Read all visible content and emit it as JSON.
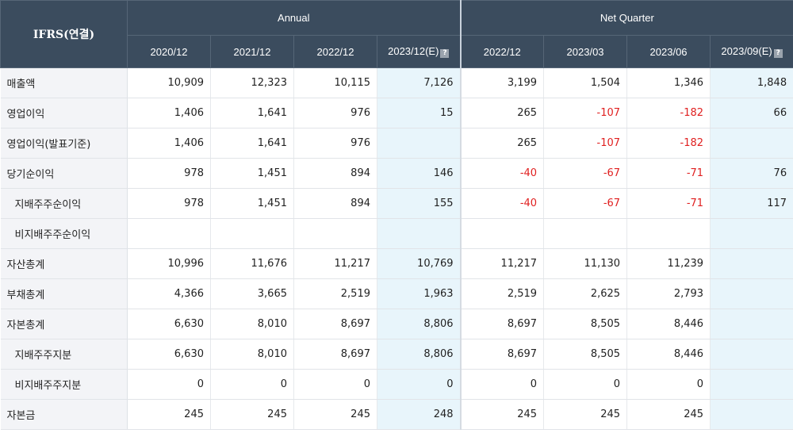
{
  "header": {
    "corner_label": "IFRS(연결)",
    "groups": [
      {
        "label": "Annual",
        "periods": [
          "2020/12",
          "2021/12",
          "2022/12",
          "2023/12(E)"
        ]
      },
      {
        "label": "Net Quarter",
        "periods": [
          "2022/12",
          "2023/03",
          "2023/06",
          "2023/09(E)"
        ]
      }
    ],
    "help_icon_glyph": "?"
  },
  "colors": {
    "header_bg": "#3b4c5e",
    "estimate_bg": "#e8f5fb",
    "negative": "#e02020",
    "label_bg": "#f3f4f7"
  },
  "rows": [
    {
      "label": "매출액",
      "indent": false,
      "values": [
        "10,909",
        "12,323",
        "10,115",
        "7,126",
        "3,199",
        "1,504",
        "1,346",
        "1,848"
      ]
    },
    {
      "label": "영업이익",
      "indent": false,
      "values": [
        "1,406",
        "1,641",
        "976",
        "15",
        "265",
        "-107",
        "-182",
        "66"
      ]
    },
    {
      "label": "영업이익(발표기준)",
      "indent": false,
      "values": [
        "1,406",
        "1,641",
        "976",
        "",
        "265",
        "-107",
        "-182",
        ""
      ]
    },
    {
      "label": "당기순이익",
      "indent": false,
      "values": [
        "978",
        "1,451",
        "894",
        "146",
        "-40",
        "-67",
        "-71",
        "76"
      ]
    },
    {
      "label": "지배주주순이익",
      "indent": true,
      "values": [
        "978",
        "1,451",
        "894",
        "155",
        "-40",
        "-67",
        "-71",
        "117"
      ]
    },
    {
      "label": "비지배주주순이익",
      "indent": true,
      "values": [
        "",
        "",
        "",
        "",
        "",
        "",
        "",
        ""
      ]
    },
    {
      "label": "자산총계",
      "indent": false,
      "values": [
        "10,996",
        "11,676",
        "11,217",
        "10,769",
        "11,217",
        "11,130",
        "11,239",
        ""
      ]
    },
    {
      "label": "부채총계",
      "indent": false,
      "values": [
        "4,366",
        "3,665",
        "2,519",
        "1,963",
        "2,519",
        "2,625",
        "2,793",
        ""
      ]
    },
    {
      "label": "자본총계",
      "indent": false,
      "values": [
        "6,630",
        "8,010",
        "8,697",
        "8,806",
        "8,697",
        "8,505",
        "8,446",
        ""
      ]
    },
    {
      "label": "지배주주지분",
      "indent": true,
      "values": [
        "6,630",
        "8,010",
        "8,697",
        "8,806",
        "8,697",
        "8,505",
        "8,446",
        ""
      ]
    },
    {
      "label": "비지배주주지분",
      "indent": true,
      "values": [
        "0",
        "0",
        "0",
        "0",
        "0",
        "0",
        "0",
        ""
      ]
    },
    {
      "label": "자본금",
      "indent": false,
      "values": [
        "245",
        "245",
        "245",
        "248",
        "245",
        "245",
        "245",
        ""
      ]
    }
  ]
}
